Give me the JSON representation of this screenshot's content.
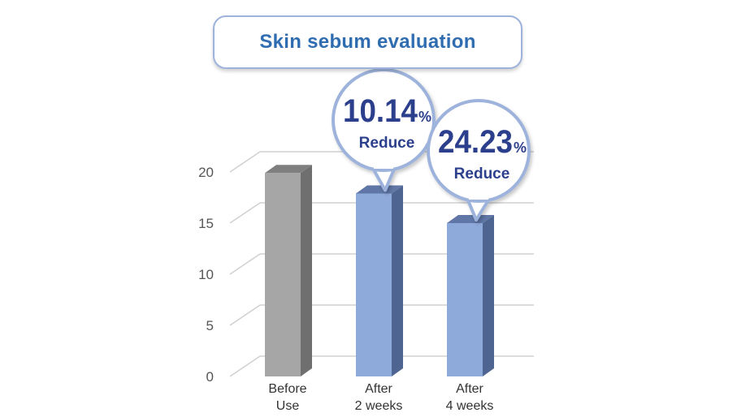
{
  "chart_data": {
    "type": "bar",
    "title": "Skin sebum evaluation",
    "categories": [
      [
        "Before",
        "Use"
      ],
      [
        "After",
        "2 weeks"
      ],
      [
        "After",
        "4 weeks"
      ]
    ],
    "values": [
      19.9,
      17.9,
      15.0
    ],
    "ylim": [
      0,
      20
    ],
    "yticks": [
      "0",
      "5",
      "10",
      "15",
      "20"
    ],
    "grid": true,
    "bar_style": "3d",
    "colors": {
      "before": "#a6a6a6",
      "after": "#8eaadb",
      "bubble_border": "#9eb3dc",
      "title": "#2f6db0",
      "callout_text": "#2b3f8c"
    },
    "callouts": [
      {
        "category_index": 1,
        "value": "10.14",
        "unit": "%",
        "label": "Reduce"
      },
      {
        "category_index": 2,
        "value": "24.23",
        "unit": "%",
        "label": "Reduce"
      }
    ]
  }
}
